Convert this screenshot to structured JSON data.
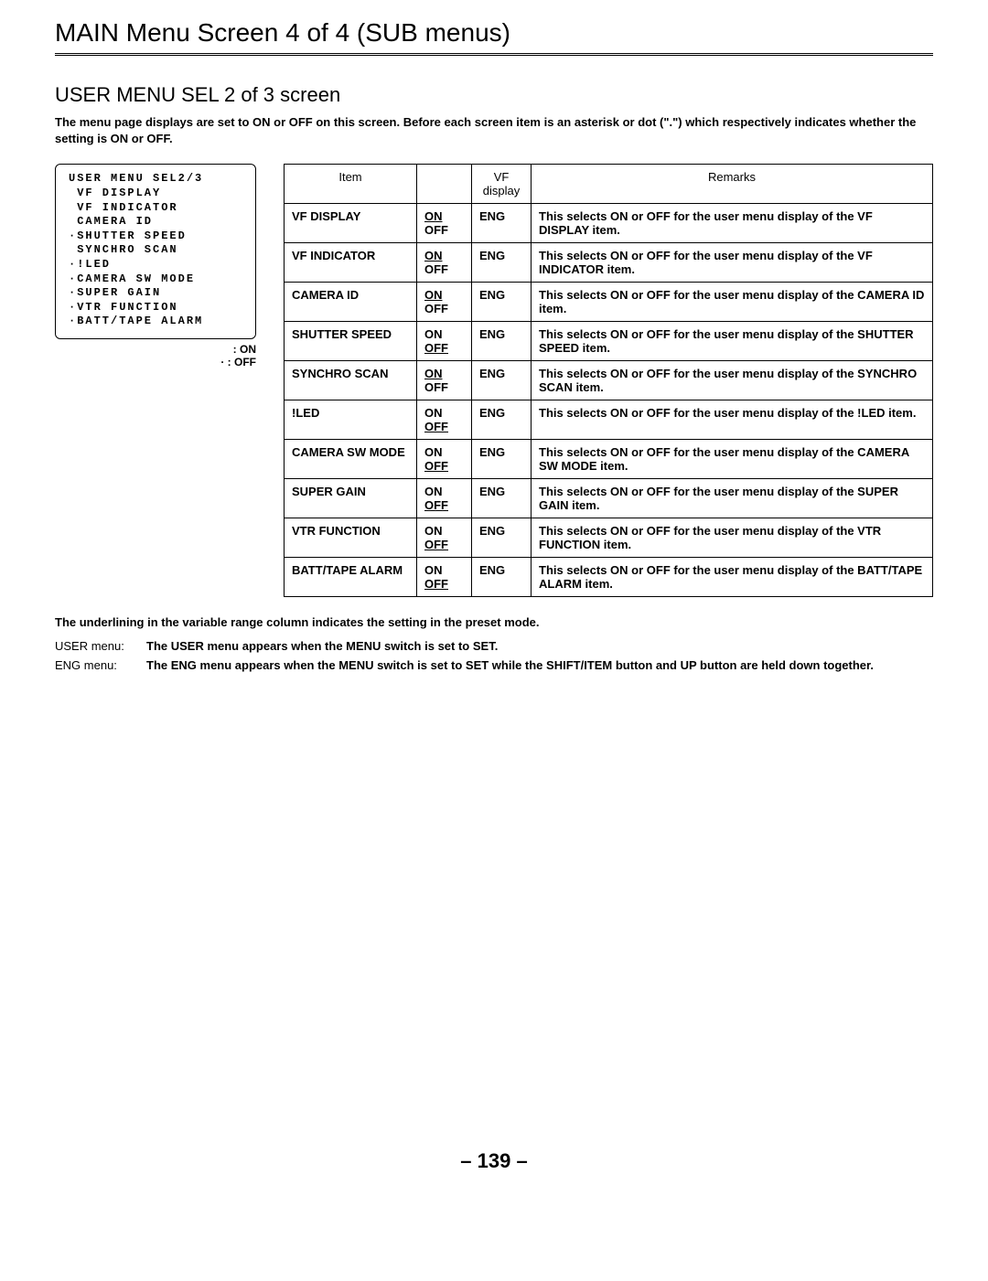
{
  "titles": {
    "main": "MAIN Menu Screen 4 of 4 (SUB menus)",
    "sub": "USER MENU SEL 2 of 3 screen"
  },
  "intro": "The menu page displays are set to ON or OFF on this screen. Before each screen item is an asterisk or dot (\".\") which respectively indicates whether the setting is ON or OFF.",
  "screenBox": {
    "lines": [
      "USER MENU SEL2/3",
      "",
      " VF DISPLAY",
      " VF INDICATOR",
      " CAMERA ID",
      "·SHUTTER SPEED",
      " SYNCHRO SCAN",
      "·!LED",
      "·CAMERA SW MODE",
      "·SUPER GAIN",
      "·VTR FUNCTION",
      "·BATT/TAPE ALARM"
    ]
  },
  "legend": {
    "on": " : ON",
    "off": "· : OFF"
  },
  "table": {
    "headers": {
      "item": "Item",
      "range": "",
      "vf": "VF display",
      "remarks": "Remarks"
    },
    "rows": [
      {
        "item": "VF DISPLAY",
        "onUnderlined": true,
        "offUnderlined": false,
        "vf": "ENG",
        "remarks": "This selects ON or OFF for the user menu display of the VF DISPLAY item."
      },
      {
        "item": "VF INDICATOR",
        "onUnderlined": true,
        "offUnderlined": false,
        "vf": "ENG",
        "remarks": "This selects ON or OFF for the user menu display of the VF INDICATOR item."
      },
      {
        "item": "CAMERA ID",
        "onUnderlined": true,
        "offUnderlined": false,
        "vf": "ENG",
        "remarks": "This selects ON or OFF for the user menu display of the CAMERA ID item."
      },
      {
        "item": "SHUTTER SPEED",
        "onUnderlined": false,
        "offUnderlined": true,
        "vf": "ENG",
        "remarks": "This selects ON or OFF for the user menu display of the SHUTTER SPEED item."
      },
      {
        "item": "SYNCHRO SCAN",
        "onUnderlined": true,
        "offUnderlined": false,
        "vf": "ENG",
        "remarks": "This selects ON or OFF for the user menu display of the SYNCHRO SCAN item."
      },
      {
        "item": "!LED",
        "onUnderlined": false,
        "offUnderlined": true,
        "vf": "ENG",
        "remarks": "This selects ON or OFF for the user menu display of the !LED item."
      },
      {
        "item": "CAMERA SW MODE",
        "onUnderlined": false,
        "offUnderlined": true,
        "vf": "ENG",
        "remarks": "This selects ON or OFF for the user menu display of the CAMERA SW MODE item."
      },
      {
        "item": "SUPER GAIN",
        "onUnderlined": false,
        "offUnderlined": true,
        "vf": "ENG",
        "remarks": "This selects ON or OFF for the user menu display of the SUPER GAIN item."
      },
      {
        "item": "VTR FUNCTION",
        "onUnderlined": false,
        "offUnderlined": true,
        "vf": "ENG",
        "remarks": "This selects ON or OFF for the user menu display of the VTR FUNCTION item."
      },
      {
        "item": "BATT/TAPE ALARM",
        "onUnderlined": false,
        "offUnderlined": true,
        "vf": "ENG",
        "remarks": "This selects ON or OFF for the user menu display of the BATT/TAPE ALARM item."
      }
    ]
  },
  "footnote": "The underlining in the variable range column indicates the setting in the preset mode.",
  "defs": {
    "userLabel": "USER menu:",
    "userText": "The USER menu appears when the MENU switch is set to SET.",
    "engLabel": "ENG menu:",
    "engText": "The ENG menu appears when the MENU switch is set to SET while the SHIFT/ITEM button and UP button are held down together."
  },
  "pageNum": "– 139 –",
  "labels": {
    "on": "ON",
    "off": "OFF"
  }
}
